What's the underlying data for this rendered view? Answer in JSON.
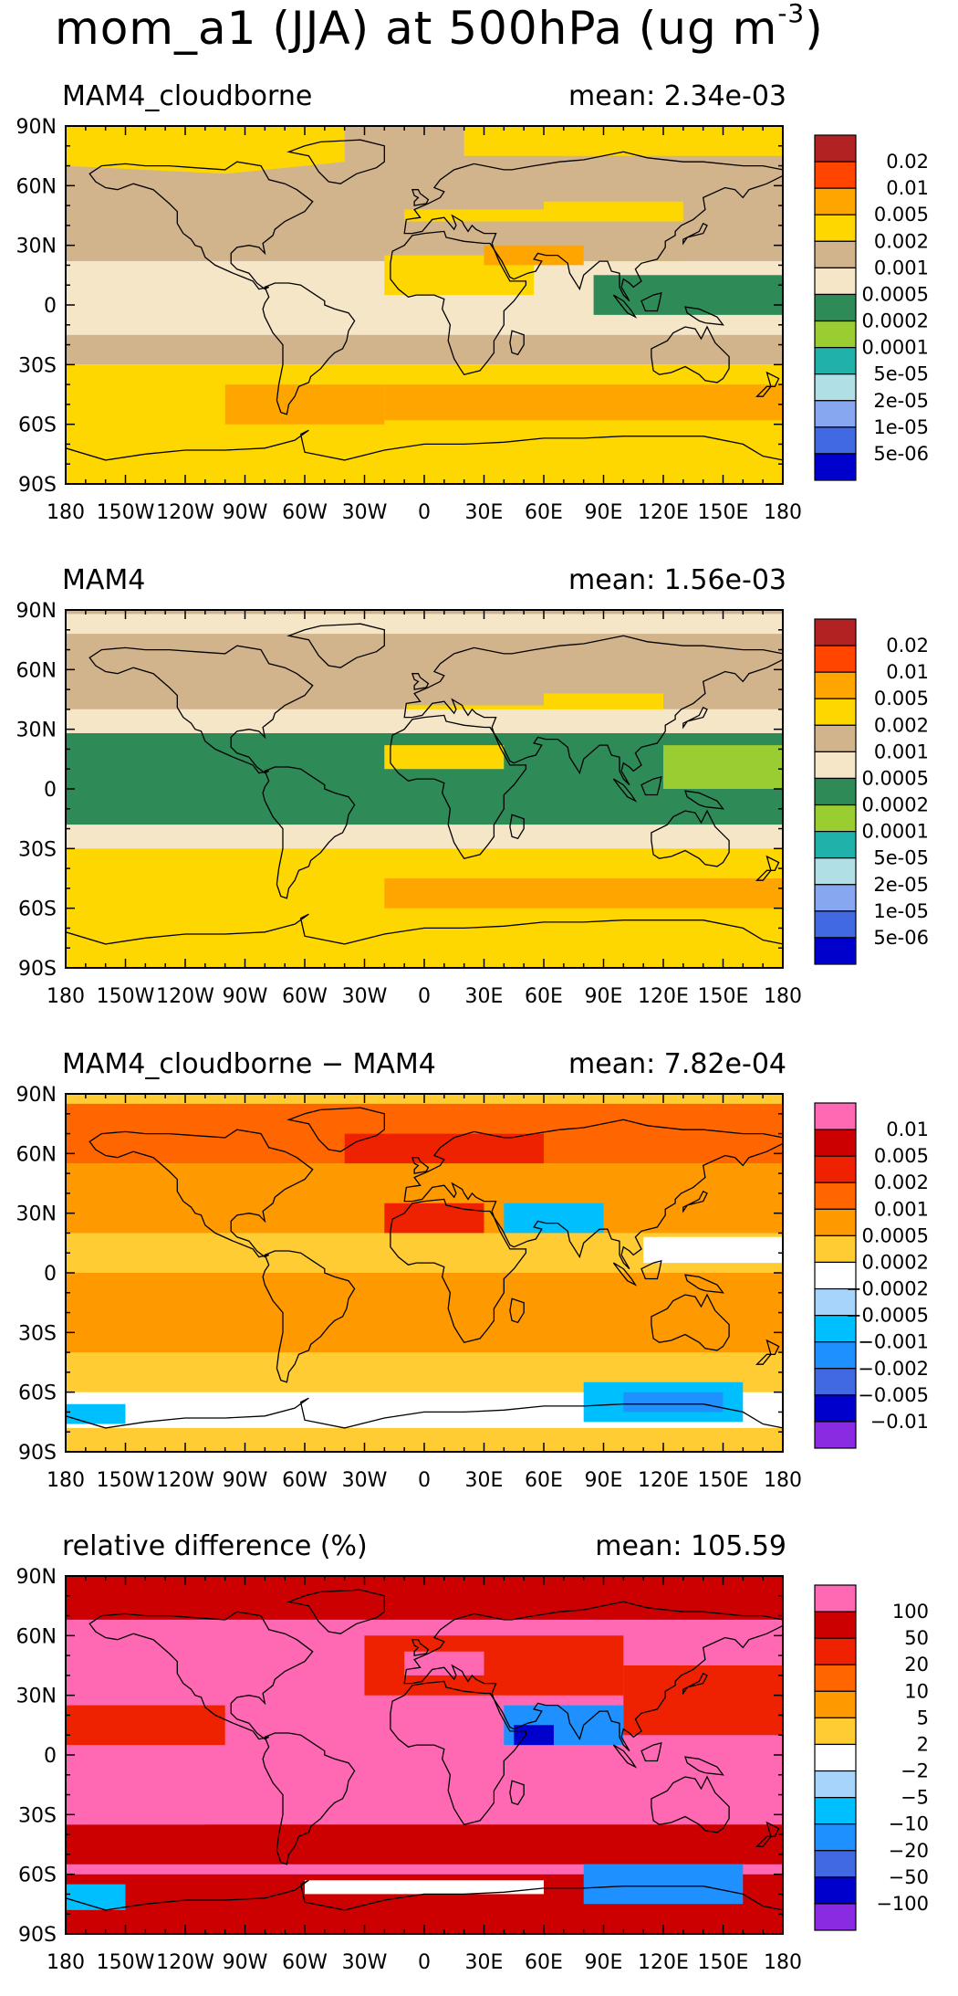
{
  "title": {
    "prefix": "mom_a1 (JJA) at 500hPa (ug m",
    "exponent": "-3",
    "suffix": ")"
  },
  "axes": {
    "lon_ticks": [
      "180",
      "150W",
      "120W",
      "90W",
      "60W",
      "30W",
      "0",
      "30E",
      "60E",
      "90E",
      "120E",
      "150E",
      "180"
    ],
    "lat_ticks": [
      "90N",
      "60N",
      "30N",
      "0",
      "30S",
      "60S",
      "90S"
    ]
  },
  "panels": [
    {
      "name": "MAM4_cloudborne",
      "mean_label": "mean: 2.34e-03",
      "colorbar_type": "absolute",
      "colorbar_labels": [
        "0.02",
        "0.01",
        "0.005",
        "0.002",
        "0.001",
        "0.0005",
        "0.0002",
        "0.0001",
        "5e-05",
        "2e-05",
        "1e-05",
        "5e-06"
      ],
      "colorbar_colors": [
        "#b22222",
        "#ff4500",
        "#ffa500",
        "#ffd700",
        "#d2b48c",
        "#f5e6c8",
        "#2e8b57",
        "#9acd32",
        "#20b2aa",
        "#b0e0e6",
        "#87a8f0",
        "#4169e1",
        "#0000cd"
      ]
    },
    {
      "name": "MAM4",
      "mean_label": "mean: 1.56e-03",
      "colorbar_type": "absolute",
      "colorbar_labels": [
        "0.02",
        "0.01",
        "0.005",
        "0.002",
        "0.001",
        "0.0005",
        "0.0002",
        "0.0001",
        "5e-05",
        "2e-05",
        "1e-05",
        "5e-06"
      ],
      "colorbar_colors": [
        "#b22222",
        "#ff4500",
        "#ffa500",
        "#ffd700",
        "#d2b48c",
        "#f5e6c8",
        "#2e8b57",
        "#9acd32",
        "#20b2aa",
        "#b0e0e6",
        "#87a8f0",
        "#4169e1",
        "#0000cd"
      ]
    },
    {
      "name": "MAM4_cloudborne − MAM4",
      "mean_label": "mean: 7.82e-04",
      "colorbar_type": "difference",
      "colorbar_labels": [
        "0.01",
        "0.005",
        "0.002",
        "0.001",
        "0.0005",
        "0.0002",
        "−0.0002",
        "−0.0005",
        "−0.001",
        "−0.002",
        "−0.005",
        "−0.01"
      ],
      "colorbar_colors": [
        "#ff69b4",
        "#cc0000",
        "#ee2200",
        "#ff6600",
        "#ff9900",
        "#ffcc33",
        "#ffffff",
        "#a6d4fa",
        "#00bfff",
        "#1e90ff",
        "#4169e1",
        "#0000cd",
        "#8a2be2"
      ]
    },
    {
      "name": "relative difference (%)",
      "mean_label": "mean: 105.59",
      "colorbar_type": "difference",
      "colorbar_labels": [
        "100",
        "50",
        "20",
        "10",
        "5",
        "2",
        "−2",
        "−5",
        "−10",
        "−20",
        "−50",
        "−100"
      ],
      "colorbar_colors": [
        "#ff69b4",
        "#cc0000",
        "#ee2200",
        "#ff6600",
        "#ff9900",
        "#ffcc33",
        "#ffffff",
        "#a6d4fa",
        "#00bfff",
        "#1e90ff",
        "#4169e1",
        "#0000cd",
        "#8a2be2"
      ]
    }
  ]
}
